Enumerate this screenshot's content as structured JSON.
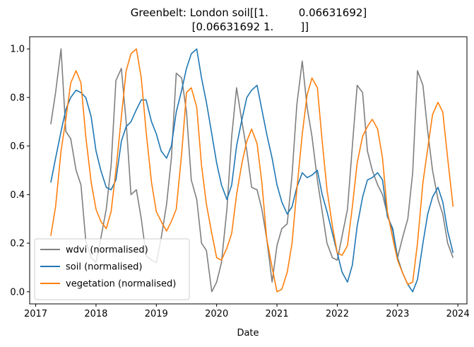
{
  "chart_data": {
    "type": "line",
    "title_lines": [
      "Greenbelt: London soil[[1.         0.06631692]",
      " [0.06631692 1.        ]]"
    ],
    "xlabel": "Date",
    "ylabel": "",
    "xlim": [
      2016.9,
      2024.15
    ],
    "ylim": [
      -0.05,
      1.05
    ],
    "xticks": [
      2017,
      2018,
      2019,
      2020,
      2021,
      2022,
      2023,
      2024
    ],
    "yticks": [
      0.0,
      0.2,
      0.4,
      0.6,
      0.8,
      1.0
    ],
    "xtick_labels": [
      "2017",
      "2018",
      "2019",
      "2020",
      "2021",
      "2022",
      "2023",
      "2024"
    ],
    "ytick_labels": [
      "0.0",
      "0.2",
      "0.4",
      "0.6",
      "0.8",
      "1.0"
    ],
    "grid": false,
    "legend_position": "bottom-left",
    "x": [
      2017.25,
      2017.33,
      2017.42,
      2017.5,
      2017.58,
      2017.67,
      2017.75,
      2017.83,
      2017.92,
      2018.0,
      2018.08,
      2018.17,
      2018.25,
      2018.33,
      2018.42,
      2018.5,
      2018.58,
      2018.67,
      2018.75,
      2018.83,
      2018.92,
      2019.0,
      2019.08,
      2019.17,
      2019.25,
      2019.33,
      2019.42,
      2019.5,
      2019.58,
      2019.67,
      2019.75,
      2019.83,
      2019.92,
      2020.0,
      2020.08,
      2020.17,
      2020.25,
      2020.33,
      2020.42,
      2020.5,
      2020.58,
      2020.67,
      2020.75,
      2020.83,
      2020.92,
      2021.0,
      2021.08,
      2021.17,
      2021.25,
      2021.33,
      2021.42,
      2021.5,
      2021.58,
      2021.67,
      2021.75,
      2021.83,
      2021.92,
      2022.0,
      2022.08,
      2022.17,
      2022.25,
      2022.33,
      2022.42,
      2022.5,
      2022.58,
      2022.67,
      2022.75,
      2022.83,
      2022.92,
      2023.0,
      2023.08,
      2023.17,
      2023.25,
      2023.33,
      2023.42,
      2023.5,
      2023.58,
      2023.67,
      2023.75,
      2023.83,
      2023.92
    ],
    "series": [
      {
        "name": "wdvi (normalised)",
        "color": "#7f7f7f",
        "values": [
          0.69,
          0.82,
          1.0,
          0.66,
          0.63,
          0.5,
          0.44,
          0.21,
          0.14,
          0.12,
          0.22,
          0.34,
          0.52,
          0.87,
          0.92,
          0.7,
          0.4,
          0.42,
          0.3,
          0.15,
          0.13,
          0.12,
          0.22,
          0.36,
          0.55,
          0.9,
          0.88,
          0.74,
          0.46,
          0.38,
          0.2,
          0.17,
          0.0,
          0.04,
          0.12,
          0.34,
          0.64,
          0.84,
          0.7,
          0.58,
          0.43,
          0.42,
          0.34,
          0.22,
          0.04,
          0.19,
          0.26,
          0.28,
          0.48,
          0.77,
          0.95,
          0.76,
          0.64,
          0.46,
          0.33,
          0.2,
          0.14,
          0.13,
          0.23,
          0.34,
          0.6,
          0.85,
          0.82,
          0.58,
          0.5,
          0.44,
          0.4,
          0.32,
          0.25,
          0.14,
          0.22,
          0.3,
          0.49,
          0.91,
          0.85,
          0.66,
          0.5,
          0.38,
          0.32,
          0.2,
          0.14
        ]
      },
      {
        "name": "soil (normalised)",
        "color": "#1f77b4",
        "values": [
          0.45,
          0.55,
          0.66,
          0.75,
          0.8,
          0.83,
          0.82,
          0.8,
          0.72,
          0.58,
          0.5,
          0.43,
          0.42,
          0.46,
          0.62,
          0.68,
          0.7,
          0.75,
          0.79,
          0.79,
          0.7,
          0.65,
          0.58,
          0.55,
          0.6,
          0.74,
          0.83,
          0.92,
          0.98,
          1.0,
          0.88,
          0.78,
          0.65,
          0.53,
          0.44,
          0.38,
          0.44,
          0.6,
          0.71,
          0.8,
          0.83,
          0.85,
          0.75,
          0.65,
          0.55,
          0.44,
          0.37,
          0.32,
          0.35,
          0.43,
          0.49,
          0.47,
          0.48,
          0.5,
          0.4,
          0.33,
          0.24,
          0.16,
          0.08,
          0.04,
          0.11,
          0.27,
          0.39,
          0.46,
          0.47,
          0.49,
          0.46,
          0.31,
          0.26,
          0.14,
          0.08,
          0.03,
          0.0,
          0.05,
          0.2,
          0.32,
          0.39,
          0.43,
          0.37,
          0.25,
          0.16
        ]
      },
      {
        "name": "vegetation (normalised)",
        "color": "#ff7f0e",
        "values": [
          0.23,
          0.35,
          0.58,
          0.71,
          0.86,
          0.91,
          0.86,
          0.64,
          0.45,
          0.34,
          0.29,
          0.26,
          0.33,
          0.5,
          0.72,
          0.91,
          0.98,
          1.0,
          0.88,
          0.66,
          0.45,
          0.33,
          0.29,
          0.25,
          0.29,
          0.34,
          0.57,
          0.82,
          0.84,
          0.76,
          0.52,
          0.36,
          0.24,
          0.14,
          0.13,
          0.18,
          0.24,
          0.4,
          0.53,
          0.62,
          0.67,
          0.61,
          0.45,
          0.22,
          0.1,
          0.0,
          0.01,
          0.08,
          0.2,
          0.42,
          0.65,
          0.81,
          0.88,
          0.84,
          0.62,
          0.42,
          0.27,
          0.16,
          0.15,
          0.19,
          0.35,
          0.53,
          0.64,
          0.68,
          0.71,
          0.67,
          0.55,
          0.33,
          0.22,
          0.13,
          0.08,
          0.03,
          0.04,
          0.2,
          0.45,
          0.59,
          0.73,
          0.78,
          0.74,
          0.55,
          0.35
        ]
      }
    ]
  }
}
